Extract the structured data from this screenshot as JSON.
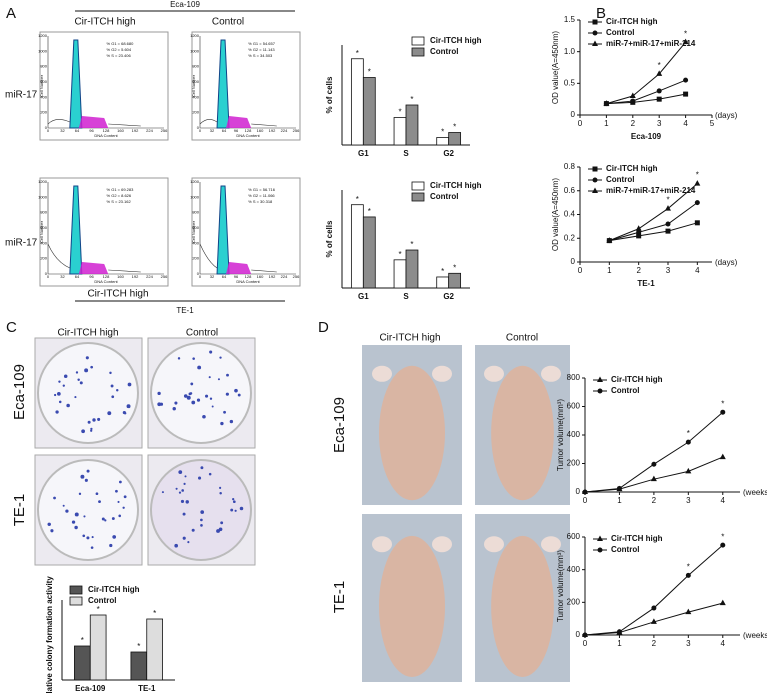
{
  "panel_labels": [
    "A",
    "B",
    "C",
    "D"
  ],
  "flow_cytometry": {
    "title": "Eca-109",
    "columns": [
      "Cir-ITCH high",
      "Control"
    ],
    "row_labels": [
      "miR-17",
      "miR-17"
    ],
    "bottom_column": "Cir-ITCH high",
    "bottom_title": "TE-1",
    "x_label": "DNA Content",
    "y_label": "Cell Number",
    "x_ticks": [
      0,
      32,
      64,
      96,
      128,
      160,
      192,
      224,
      256
    ],
    "y_ticks": [
      0,
      200,
      400,
      600,
      800,
      1000,
      1200
    ],
    "plots": [
      {
        "stats": [
          "% G1 = 68.680",
          "% G2 = 5.604",
          "% S = 23.406"
        ]
      },
      {
        "stats": [
          "% G1 = 54.657",
          "% G2 = 11.143",
          "% S = 34.503"
        ]
      },
      {
        "stats": [
          "% G1 = 69.283",
          "% G2 = 8.626",
          "% S = 23.162"
        ]
      },
      {
        "stats": [
          "% G1 = 56.716",
          "% G2 = 11.066",
          "% S = 30.318"
        ]
      }
    ]
  },
  "colony": {
    "columns": [
      "Cir-ITCH high",
      "Control"
    ],
    "rows": [
      "Eca-109",
      "TE-1"
    ]
  },
  "tumor": {
    "columns": [
      "Cir-ITCH high",
      "Control"
    ],
    "rows": [
      "Eca-109",
      "TE-1"
    ]
  },
  "chart_data": [
    {
      "type": "bar",
      "ylabel": "% of cells",
      "categories": [
        "G1",
        "S",
        "G2"
      ],
      "ylim": [
        0,
        80
      ],
      "legend": "upper right",
      "significance_marker": "*",
      "series": [
        {
          "name": "Cir-ITCH high",
          "color": "#ffffff",
          "values": [
            69,
            22,
            6
          ]
        },
        {
          "name": "Control",
          "color": "#8c8c8c",
          "values": [
            54,
            32,
            10
          ]
        }
      ]
    },
    {
      "type": "bar",
      "ylabel": "% of cells",
      "categories": [
        "G1",
        "S",
        "G2"
      ],
      "ylim": [
        0,
        80
      ],
      "legend": "upper right",
      "significance_marker": "*",
      "series": [
        {
          "name": "Cir-ITCH high",
          "color": "#ffffff",
          "values": [
            68,
            23,
            9
          ]
        },
        {
          "name": "Control",
          "color": "#8c8c8c",
          "values": [
            58,
            31,
            12
          ]
        }
      ]
    },
    {
      "type": "line",
      "ylabel": "OD value(A=450nm)",
      "xlabel": "Eca-109",
      "x_unit": "(days)",
      "x": [
        1,
        2,
        3,
        4
      ],
      "xlim": [
        0,
        5
      ],
      "xticks": [
        0,
        1,
        2,
        3,
        4,
        5
      ],
      "ylim": [
        0,
        1.5
      ],
      "yticks": [
        0,
        0.5,
        {
          "value": 1,
          "label": "1.0"
        },
        1.5
      ],
      "legend": "upper left",
      "significance_marker": "*",
      "series": [
        {
          "name": "Cir-ITCH high",
          "color": "#111111",
          "marker": "square",
          "values": [
            0.18,
            0.2,
            0.25,
            0.33
          ]
        },
        {
          "name": "Control",
          "color": "#111111",
          "marker": "circle",
          "values": [
            0.18,
            0.22,
            0.38,
            0.55
          ]
        },
        {
          "name": "miR-7+miR-17+miR-214",
          "color": "#111111",
          "marker": "triangle",
          "values": [
            0.18,
            0.3,
            0.65,
            1.15
          ]
        }
      ]
    },
    {
      "type": "line",
      "ylabel": "OD value(A=450nm)",
      "xlabel": "TE-1",
      "x_unit": "(days)",
      "x": [
        1,
        2,
        3,
        4
      ],
      "xlim": [
        0,
        4.5
      ],
      "xticks": [
        0,
        1,
        2,
        3,
        4
      ],
      "ylim": [
        0,
        0.8
      ],
      "yticks": [
        0,
        0.2,
        0.4,
        0.6,
        0.8
      ],
      "legend": "upper left",
      "significance_marker": "*",
      "series": [
        {
          "name": "Cir-ITCH high",
          "color": "#111111",
          "marker": "square",
          "values": [
            0.18,
            0.22,
            0.26,
            0.33
          ]
        },
        {
          "name": "Control",
          "color": "#111111",
          "marker": "circle",
          "values": [
            0.18,
            0.25,
            0.32,
            0.5
          ]
        },
        {
          "name": "miR-7+miR-17+miR-214",
          "color": "#111111",
          "marker": "triangle",
          "values": [
            0.18,
            0.28,
            0.45,
            0.66
          ]
        }
      ]
    },
    {
      "type": "bar",
      "ylabel": "Relative colony formation activity",
      "categories": [
        "Eca-109",
        "TE-1"
      ],
      "ylim": [
        0,
        80
      ],
      "legend": "upper left",
      "significance_marker": "*",
      "series": [
        {
          "name": "Cir-ITCH high",
          "color": "#555555",
          "values": [
            34,
            28
          ]
        },
        {
          "name": "Control",
          "color": "#dddddd",
          "values": [
            65,
            61
          ]
        }
      ]
    },
    {
      "type": "line",
      "ylabel": "Tumor volume(mm³)",
      "x_unit": "(weeks)",
      "x": [
        0,
        1,
        2,
        3,
        4
      ],
      "xlim": [
        0,
        4.5
      ],
      "xticks": [
        0,
        1,
        2,
        3,
        4
      ],
      "ylim": [
        0,
        800
      ],
      "yticks": [
        0,
        200,
        400,
        600,
        800
      ],
      "legend": "upper left",
      "significance_marker": "*",
      "series": [
        {
          "name": "Cir-ITCH high",
          "color": "#111111",
          "marker": "triangle",
          "values": [
            0,
            20,
            90,
            145,
            245
          ]
        },
        {
          "name": "Control",
          "color": "#111111",
          "marker": "circle",
          "values": [
            0,
            25,
            195,
            350,
            560
          ]
        }
      ]
    },
    {
      "type": "line",
      "ylabel": "Tumor volume(mm³)",
      "x_unit": "(weeks)",
      "x": [
        0,
        1,
        2,
        3,
        4
      ],
      "xlim": [
        0,
        4.5
      ],
      "xticks": [
        0,
        1,
        2,
        3,
        4
      ],
      "ylim": [
        0,
        600
      ],
      "yticks": [
        0,
        200,
        400,
        600
      ],
      "legend": "upper left",
      "significance_marker": "*",
      "series": [
        {
          "name": "Cir-ITCH high",
          "color": "#111111",
          "marker": "triangle",
          "values": [
            0,
            15,
            80,
            140,
            195
          ]
        },
        {
          "name": "Control",
          "color": "#111111",
          "marker": "circle",
          "values": [
            0,
            20,
            165,
            365,
            550
          ]
        }
      ]
    }
  ]
}
